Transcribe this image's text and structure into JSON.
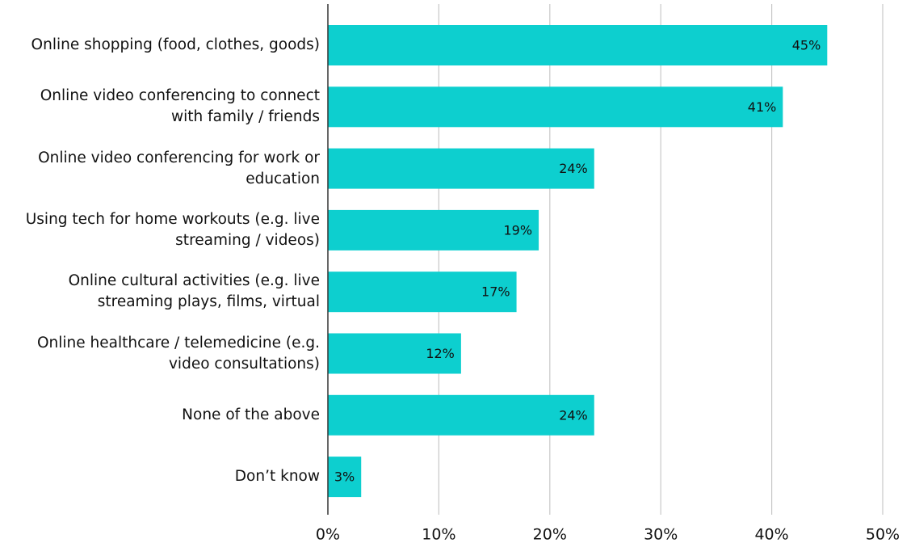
{
  "chart_data": {
    "type": "barh",
    "categories": [
      "Online shopping (food, clothes, goods)",
      "Online video conferencing to connect with family / friends",
      "Online video conferencing for work or education",
      "Using tech for home workouts (e.g. live streaming / videos)",
      "Online cultural activities (e.g. live streaming plays, films, virtual",
      "Online healthcare / telemedicine (e.g. video consultations)",
      "None of the above",
      "Don’t know"
    ],
    "values": [
      45,
      41,
      24,
      19,
      17,
      12,
      24,
      3
    ],
    "value_labels": [
      "45%",
      "41%",
      "24%",
      "19%",
      "17%",
      "12%",
      "24%",
      "3%"
    ],
    "color": "#0dcfcf",
    "xlim": [
      0,
      50
    ],
    "xticks": [
      {
        "value": 0,
        "label": "0%"
      },
      {
        "value": 10,
        "label": "10%"
      },
      {
        "value": 20,
        "label": "20%"
      },
      {
        "value": 30,
        "label": "30%"
      },
      {
        "value": 40,
        "label": "40%"
      },
      {
        "value": 50,
        "label": "50%"
      }
    ],
    "grid": true
  }
}
